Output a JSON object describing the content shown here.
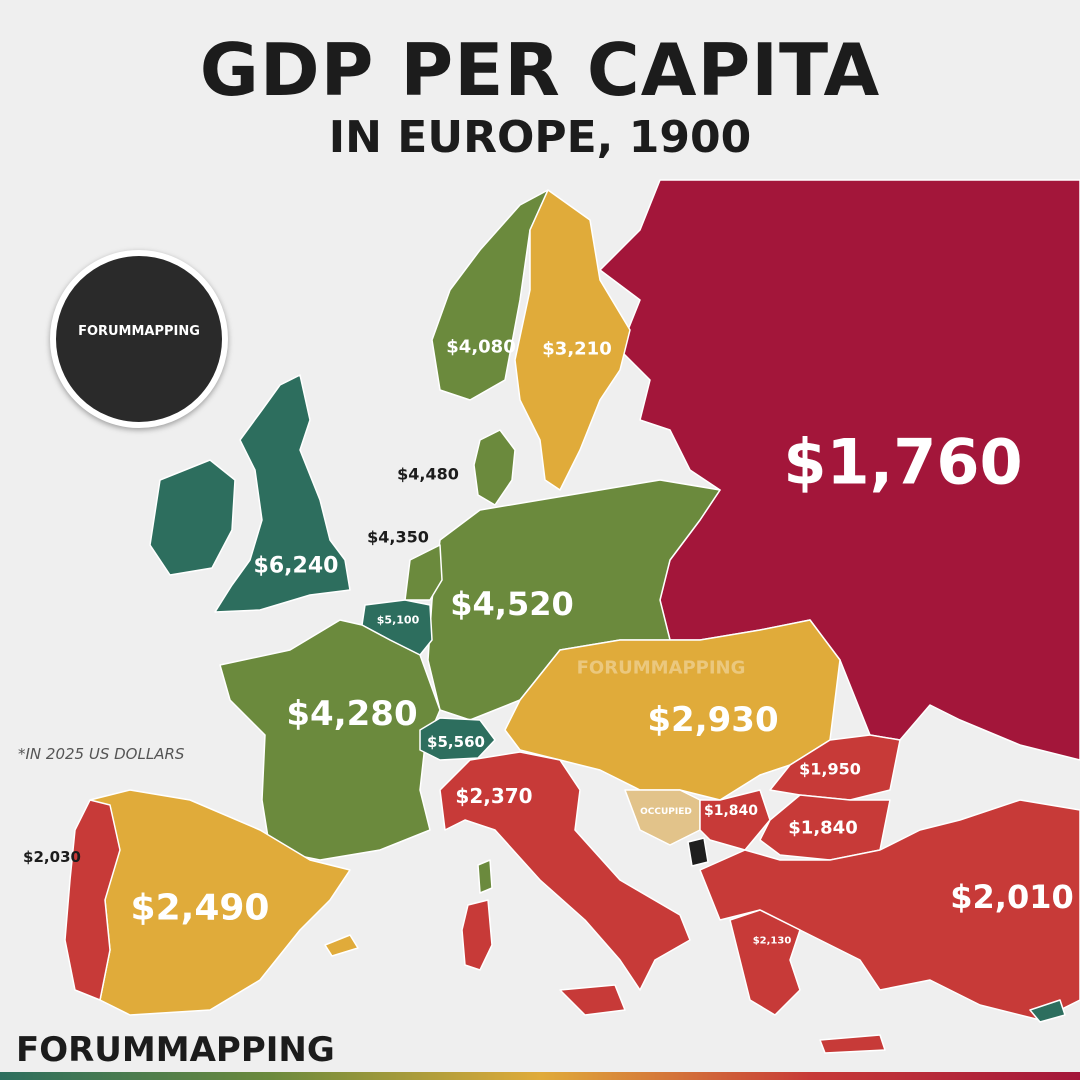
{
  "title": "GDP PER CAPITA",
  "subtitle": "IN EUROPE, 1900",
  "footnote": "*IN 2025 US DOLLARS",
  "brand": "FORUMMAPPING",
  "badge_text": "FORUMMAPPING",
  "watermark": "FORUMMAPPING",
  "occupied_label": "OCCUPIED",
  "colors": {
    "dark_green": "#2d6e5e",
    "olive_green": "#6b8a3d",
    "gold": "#e0ab3a",
    "red": "#c73a38",
    "crimson": "#a3163a",
    "occupied": "#e2c38a",
    "background": "#efefef"
  },
  "regions": [
    {
      "id": "russia",
      "value": "$1,760"
    },
    {
      "id": "united-kingdom",
      "value": "$6,240"
    },
    {
      "id": "switzerland",
      "value": "$5,560"
    },
    {
      "id": "belgium",
      "value": "$5,100"
    },
    {
      "id": "germany",
      "value": "$4,520"
    },
    {
      "id": "denmark",
      "value": "$4,480"
    },
    {
      "id": "netherlands",
      "value": "$4,350"
    },
    {
      "id": "france",
      "value": "$4,280"
    },
    {
      "id": "norway",
      "value": "$4,080"
    },
    {
      "id": "sweden",
      "value": "$3,210"
    },
    {
      "id": "austria-hungary",
      "value": "$2,930"
    },
    {
      "id": "spain",
      "value": "$2,490"
    },
    {
      "id": "italy",
      "value": "$2,370"
    },
    {
      "id": "greece",
      "value": "$2,130"
    },
    {
      "id": "portugal",
      "value": "$2,030"
    },
    {
      "id": "ottoman-empire",
      "value": "$2,010"
    },
    {
      "id": "romania",
      "value": "$1,950"
    },
    {
      "id": "serbia",
      "value": "$1,840"
    },
    {
      "id": "bulgaria",
      "value": "$1,840"
    }
  ]
}
